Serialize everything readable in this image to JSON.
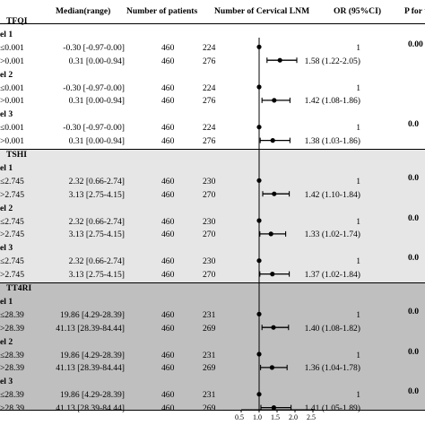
{
  "colors": {
    "tfqi_bg": "#ffffff",
    "tshi_bg": "#e6e6e6",
    "tt4ri_bg": "#bfbfbf",
    "marker": "#000000"
  },
  "header": {
    "median": "Median(range)",
    "patients": "Number of patients",
    "lnm": "Number of Cervical LNM",
    "or": "OR (95%CI)",
    "p": "P for tr"
  },
  "axis": {
    "ticks": [
      "0.5",
      "1.0",
      "1.5",
      "2.0",
      "2.5"
    ]
  },
  "chart_data": {
    "type": "forest",
    "xlim": [
      0.5,
      2.5
    ],
    "x_ticks": [
      0.5,
      1.0,
      1.5,
      2.0,
      2.5
    ],
    "reference_line": 1.0,
    "groups": [
      {
        "name": "TFQI",
        "models": [
          {
            "name": "el 1",
            "p": "0.00",
            "rows": [
              {
                "cat": "≤0.001",
                "median": "-0.30 [-0.97-0.00]",
                "n": "460",
                "lnm": "224",
                "or_text": "1",
                "or": 1.0,
                "lo": null,
                "hi": null
              },
              {
                "cat": ">0.001",
                "median": "0.31 [0.00-0.94]",
                "n": "460",
                "lnm": "276",
                "or_text": "1.58 (1.22-2.05)",
                "or": 1.58,
                "lo": 1.22,
                "hi": 2.05
              }
            ]
          },
          {
            "name": "el 2",
            "p": "",
            "rows": [
              {
                "cat": "≤0.001",
                "median": "-0.30 [-0.97-0.00]",
                "n": "460",
                "lnm": "224",
                "or_text": "1",
                "or": 1.0,
                "lo": null,
                "hi": null
              },
              {
                "cat": ">0.001",
                "median": "0.31 [0.00-0.94]",
                "n": "460",
                "lnm": "276",
                "or_text": "1.42 (1.08-1.86)",
                "or": 1.42,
                "lo": 1.08,
                "hi": 1.86
              }
            ]
          },
          {
            "name": "el 3",
            "p": "0.0",
            "rows": [
              {
                "cat": "≤0.001",
                "median": "-0.30 [-0.97-0.00]",
                "n": "460",
                "lnm": "224",
                "or_text": "1",
                "or": 1.0,
                "lo": null,
                "hi": null
              },
              {
                "cat": ">0.001",
                "median": "0.31 [0.00-0.94]",
                "n": "460",
                "lnm": "276",
                "or_text": "1.38 (1.03-1.86)",
                "or": 1.38,
                "lo": 1.03,
                "hi": 1.86
              }
            ]
          }
        ]
      },
      {
        "name": "TSHI",
        "models": [
          {
            "name": "el 1",
            "p": "0.0",
            "rows": [
              {
                "cat": "≤2.745",
                "median": "2.32 [0.66-2.74]",
                "n": "460",
                "lnm": "230",
                "or_text": "1",
                "or": 1.0,
                "lo": null,
                "hi": null
              },
              {
                "cat": ">2.745",
                "median": "3.13 [2.75-4.15]",
                "n": "460",
                "lnm": "270",
                "or_text": "1.42 (1.10-1.84)",
                "or": 1.42,
                "lo": 1.1,
                "hi": 1.84
              }
            ]
          },
          {
            "name": "el 2",
            "p": "0.0",
            "rows": [
              {
                "cat": "≤2.745",
                "median": "2.32 [0.66-2.74]",
                "n": "460",
                "lnm": "230",
                "or_text": "1",
                "or": 1.0,
                "lo": null,
                "hi": null
              },
              {
                "cat": ">2.745",
                "median": "3.13 [2.75-4.15]",
                "n": "460",
                "lnm": "270",
                "or_text": "1.33 (1.02-1.74)",
                "or": 1.33,
                "lo": 1.02,
                "hi": 1.74
              }
            ]
          },
          {
            "name": "el 3",
            "p": "0.0",
            "rows": [
              {
                "cat": "≤2.745",
                "median": "2.32 [0.66-2.74]",
                "n": "460",
                "lnm": "230",
                "or_text": "1",
                "or": 1.0,
                "lo": null,
                "hi": null
              },
              {
                "cat": ">2.745",
                "median": "3.13 [2.75-4.15]",
                "n": "460",
                "lnm": "270",
                "or_text": "1.37 (1.02-1.84)",
                "or": 1.37,
                "lo": 1.02,
                "hi": 1.84
              }
            ]
          }
        ]
      },
      {
        "name": "TT4RI",
        "models": [
          {
            "name": "el 1",
            "p": "0.0",
            "rows": [
              {
                "cat": "≤28.39",
                "median": "19.86 [4.29-28.39]",
                "n": "460",
                "lnm": "231",
                "or_text": "1",
                "or": 1.0,
                "lo": null,
                "hi": null
              },
              {
                "cat": ">28.39",
                "median": "41.13 [28.39-84.44]",
                "n": "460",
                "lnm": "269",
                "or_text": "1.40 (1.08-1.82)",
                "or": 1.4,
                "lo": 1.08,
                "hi": 1.82
              }
            ]
          },
          {
            "name": "el 2",
            "p": "0.0",
            "rows": [
              {
                "cat": "≤28.39",
                "median": "19.86 [4.29-28.39]",
                "n": "460",
                "lnm": "231",
                "or_text": "1",
                "or": 1.0,
                "lo": null,
                "hi": null
              },
              {
                "cat": ">28.39",
                "median": "41.13 [28.39-84.44]",
                "n": "460",
                "lnm": "269",
                "or_text": "1.36 (1.04-1.78)",
                "or": 1.36,
                "lo": 1.04,
                "hi": 1.78
              }
            ]
          },
          {
            "name": "el 3",
            "p": "0.0",
            "rows": [
              {
                "cat": "≤28.39",
                "median": "19.86 [4.29-28.39]",
                "n": "460",
                "lnm": "231",
                "or_text": "1",
                "or": 1.0,
                "lo": null,
                "hi": null
              },
              {
                "cat": ">28.39",
                "median": "41.13 [28.39-84.44]",
                "n": "460",
                "lnm": "269",
                "or_text": "1.41 (1.05-1.89)",
                "or": 1.41,
                "lo": 1.05,
                "hi": 1.89
              }
            ]
          }
        ]
      }
    ]
  }
}
